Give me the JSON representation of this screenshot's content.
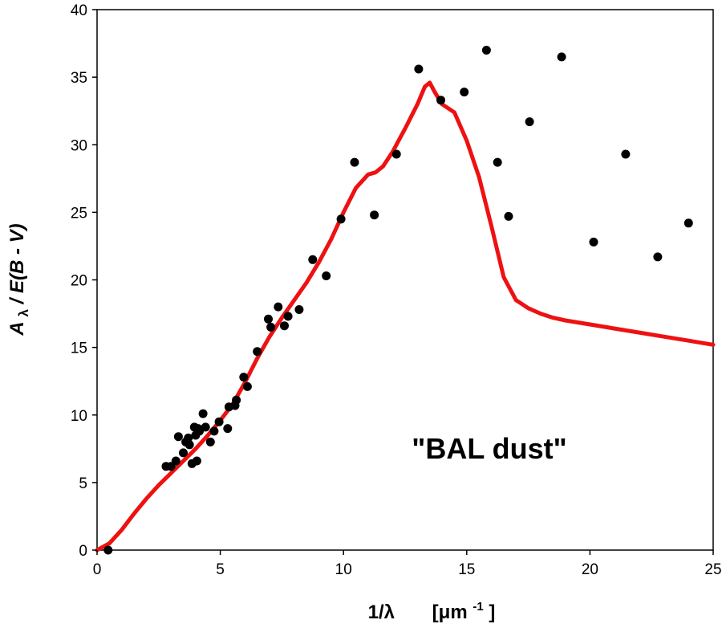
{
  "chart_data": {
    "type": "scatter",
    "xlabel_main": "1/λ",
    "xlabel_unit_base": "[μm",
    "xlabel_unit_sup": "-1",
    "xlabel_unit_close": "]",
    "ylabel_A": "A",
    "ylabel_sub": "λ",
    "ylabel_rest": " / E(B - V)",
    "annotation": "\"BAL dust\"",
    "xlim": [
      0,
      25
    ],
    "ylim": [
      0,
      40
    ],
    "xticks": [
      "0",
      "5",
      "10",
      "15",
      "20",
      "25"
    ],
    "yticks": [
      "0",
      "5",
      "10",
      "15",
      "20",
      "25",
      "30",
      "35",
      "40"
    ],
    "grid": false,
    "legend": "none",
    "curve_color": "#ee1111",
    "point_color": "#000000",
    "series": [
      {
        "kind": "points",
        "x": [
          0.45,
          2.8,
          3.0,
          3.2,
          3.3,
          3.5,
          3.6,
          3.7,
          3.75,
          3.85,
          3.95,
          4.0,
          4.05,
          4.1,
          4.15,
          4.3,
          4.4,
          4.6,
          4.75,
          4.95,
          5.3,
          5.35,
          5.6,
          5.65,
          5.95,
          6.1,
          6.5,
          6.95,
          7.05,
          7.35,
          7.6,
          7.75,
          8.2,
          8.75,
          9.3,
          9.9,
          10.45,
          11.25,
          12.15,
          13.05,
          13.95,
          14.9,
          15.8,
          16.25,
          16.7,
          17.55,
          18.85,
          20.15,
          21.45,
          22.75,
          24.0
        ],
        "y": [
          0.0,
          6.2,
          6.2,
          6.6,
          8.4,
          7.2,
          8.0,
          8.3,
          7.8,
          6.4,
          9.1,
          8.5,
          6.6,
          9.0,
          8.8,
          10.1,
          9.1,
          8.0,
          8.8,
          9.5,
          9.0,
          10.6,
          10.7,
          11.1,
          12.8,
          12.1,
          14.7,
          17.1,
          16.5,
          18.0,
          16.6,
          17.3,
          17.8,
          21.5,
          20.3,
          24.5,
          28.7,
          24.8,
          29.3,
          35.6,
          33.3,
          33.9,
          37.0,
          28.7,
          24.7,
          31.7,
          36.5,
          22.8,
          29.3,
          21.7,
          24.2
        ]
      },
      {
        "kind": "curve",
        "x": [
          0,
          0.5,
          1.0,
          1.5,
          2.0,
          2.5,
          3.0,
          3.5,
          4.0,
          4.5,
          5.0,
          5.5,
          6.0,
          6.5,
          7.0,
          7.5,
          8.0,
          8.5,
          9.0,
          9.5,
          10.0,
          10.5,
          11.0,
          11.3,
          11.6,
          12.0,
          12.5,
          13.0,
          13.3,
          13.5,
          13.7,
          14.0,
          14.5,
          15.0,
          15.5,
          16.0,
          16.5,
          17.0,
          17.5,
          18.0,
          18.5,
          19.0,
          20.0,
          21.0,
          22.0,
          23.0,
          24.0,
          25.0
        ],
        "y": [
          0.0,
          0.5,
          1.5,
          2.7,
          3.8,
          4.8,
          5.7,
          6.6,
          7.5,
          8.5,
          9.6,
          10.8,
          12.4,
          14.2,
          15.8,
          17.2,
          18.5,
          19.8,
          21.3,
          23.0,
          25.0,
          26.8,
          27.8,
          27.95,
          28.4,
          29.5,
          31.2,
          33.0,
          34.3,
          34.6,
          33.9,
          33.0,
          32.4,
          30.3,
          27.6,
          24.0,
          20.2,
          18.5,
          17.9,
          17.5,
          17.2,
          17.0,
          16.7,
          16.4,
          16.1,
          15.8,
          15.5,
          15.2
        ]
      }
    ]
  }
}
